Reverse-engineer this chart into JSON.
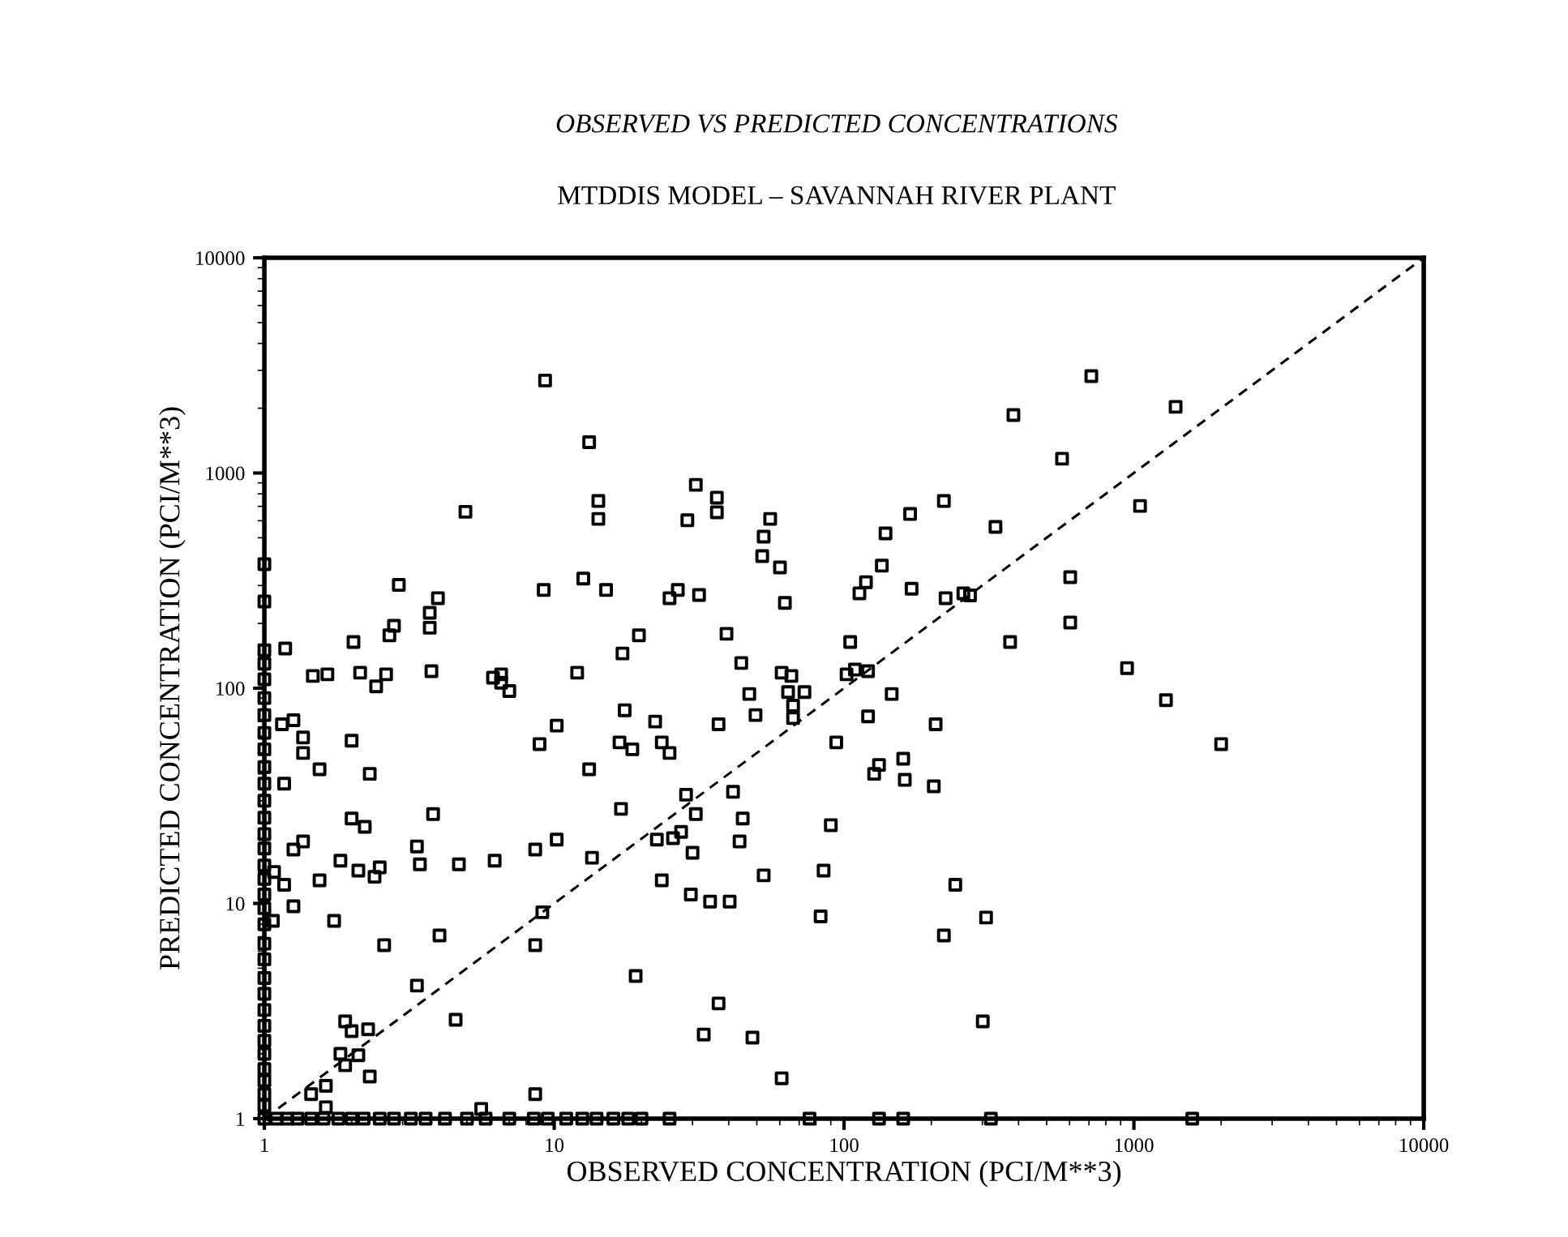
{
  "chart_data": {
    "type": "scatter",
    "title": "OBSERVED VS PREDICTED CONCENTRATIONS",
    "subtitle": "MTDDIS MODEL – SAVANNAH RIVER PLANT",
    "xlabel": "OBSERVED CONCENTRATION (PCI/M**3)",
    "ylabel": "PREDICTED CONCENTRATION (PCI/M**3)",
    "log": "xy",
    "xlim": [
      1,
      10000
    ],
    "ylim": [
      1,
      10000
    ],
    "xticks": [
      1,
      10,
      100,
      1000,
      10000
    ],
    "yticks": [
      1,
      10,
      100,
      1000,
      10000
    ],
    "series": [
      {
        "color": "#000000",
        "marker": "square",
        "x": [
          9.3,
          13.2,
          14.2,
          14.2,
          4.94,
          30.8,
          36.4,
          36.4,
          28.8,
          55.6,
          52.8,
          52.2,
          60.1,
          62.5,
          9.2,
          12.6,
          15.1,
          25,
          26.7,
          31.6,
          2.91,
          3.97,
          1,
          1,
          1.18,
          2.03,
          2.8,
          2.7,
          3.72,
          3.72,
          1.47,
          1.65,
          2.14,
          2.43,
          2.63,
          3.77,
          6.15,
          6.56,
          6.56,
          7.0,
          12.0,
          17.2,
          19.6,
          39.3,
          44.2,
          60.9,
          65.8,
          47.1,
          64.1,
          73,
          105,
          102,
          109,
          121,
          146,
          66.7,
          66.7,
          49.5,
          36.9,
          121,
          207,
          94,
          132,
          127,
          160,
          162,
          204,
          41.4,
          44.7,
          43.6,
          90,
          52.8,
          85,
          34.5,
          40.3,
          83,
          242,
          309,
          221,
          36.9,
          32.8,
          48.3,
          60.9,
          301,
          713,
          384,
          565,
          221,
          169,
          333,
          139,
          135,
          119,
          113,
          171,
          224,
          258,
          272,
          603,
          603,
          374,
          947,
          1393,
          1050,
          1290,
          2000,
          1.15,
          1.26,
          1.36,
          1.36,
          2.0,
          1.55,
          2.31,
          1.17,
          2.0,
          2.22,
          1.36,
          1.26,
          1.83,
          2.11,
          2.5,
          2.4,
          1.08,
          1.17,
          1.55,
          1.26,
          1.07,
          1.74,
          2.59,
          3.82,
          3.36,
          3.44,
          4.69,
          6.23,
          4.02,
          3.36,
          4.57,
          1.9,
          2.0,
          2.28,
          1.83,
          2.11,
          1.9,
          2.31,
          1.63,
          1.45,
          1.63,
          5.6,
          8.6,
          8.6,
          9.1,
          19.1,
          8.9,
          10.2,
          13.2,
          17.5,
          22.3,
          16.8,
          18.6,
          23.5,
          25,
          17,
          8.6,
          10.2,
          13.5,
          28.5,
          30.8,
          22.6,
          25.7,
          27.4,
          30,
          23.5,
          29.6,
          1,
          1,
          1,
          1,
          1,
          1,
          1,
          1,
          1,
          1,
          1,
          1,
          1,
          1,
          1,
          1,
          1,
          1,
          1,
          1,
          1,
          1,
          1,
          1,
          1,
          1,
          1,
          1,
          1,
          1,
          1,
          1.1,
          1.2,
          1.3,
          1.45,
          1.6,
          1.8,
          2,
          2.2,
          2.5,
          2.8,
          3.2,
          3.6,
          4.2,
          5,
          5.8,
          7,
          8.5,
          9.5,
          11,
          12.5,
          14,
          16,
          18,
          20,
          25,
          76,
          132,
          160,
          321,
          1590
        ],
        "values": [
          2690,
          1390,
          741,
          612,
          660,
          881,
          768,
          657,
          603,
          612,
          506,
          411,
          364,
          249,
          286,
          323,
          286,
          262,
          286,
          271,
          302,
          262,
          377,
          253,
          153,
          164,
          195,
          176,
          224,
          191,
          114,
          116,
          118,
          102,
          116,
          120,
          112,
          116,
          106,
          97,
          118,
          145,
          176,
          179,
          131,
          118,
          114,
          94,
          96,
          96,
          164,
          116,
          122,
          120,
          94,
          83,
          72.6,
          75,
          68,
          74,
          68,
          56,
          44,
          40,
          47,
          37.5,
          35,
          33,
          24.8,
          19.4,
          23.1,
          13.5,
          14.2,
          10.2,
          10.2,
          8.7,
          12.2,
          8.6,
          7.1,
          3.43,
          2.46,
          2.38,
          1.54,
          2.83,
          2820,
          1860,
          1165,
          741,
          645,
          562,
          524,
          371,
          311,
          276,
          290,
          262,
          276,
          270,
          328,
          202,
          164,
          124,
          2030,
          703,
          88,
          55,
          68,
          71,
          59,
          50,
          57,
          42,
          40,
          36,
          24.8,
          22.7,
          19.4,
          17.8,
          15.8,
          14.2,
          14.7,
          13.3,
          14.0,
          12.2,
          12.8,
          9.7,
          8.3,
          8.3,
          6.4,
          26,
          18.4,
          15.2,
          15.2,
          15.8,
          7.1,
          4.15,
          2.88,
          2.83,
          2.55,
          2.6,
          2.0,
          1.97,
          1.77,
          1.57,
          1.42,
          1.3,
          1.13,
          1.11,
          1.3,
          6.4,
          9.1,
          4.6,
          55,
          67,
          42,
          79,
          70,
          56,
          52,
          56,
          50,
          27.5,
          17.8,
          19.8,
          16.3,
          32,
          26,
          19.8,
          20.1,
          21.5,
          17.2,
          12.8,
          11.0,
          1,
          1.15,
          1.3,
          1.5,
          1.7,
          2,
          2.3,
          2.7,
          3.2,
          3.8,
          4.5,
          5.5,
          6.5,
          8,
          9.5,
          11,
          13,
          15,
          18,
          21,
          25,
          30,
          36,
          43,
          52,
          62,
          75,
          90,
          110,
          130,
          150,
          1,
          1,
          1,
          1,
          1,
          1,
          1,
          1,
          1,
          1,
          1,
          1,
          1,
          1,
          1,
          1,
          1,
          1,
          1,
          1,
          1,
          1,
          1,
          1,
          1,
          1,
          1,
          1,
          1,
          1
        ]
      },
      {
        "type": "line",
        "color": "#000000",
        "line_style": "dashed",
        "marker": "none",
        "x": [
          1,
          10000
        ],
        "values": [
          1,
          10000
        ]
      }
    ]
  }
}
